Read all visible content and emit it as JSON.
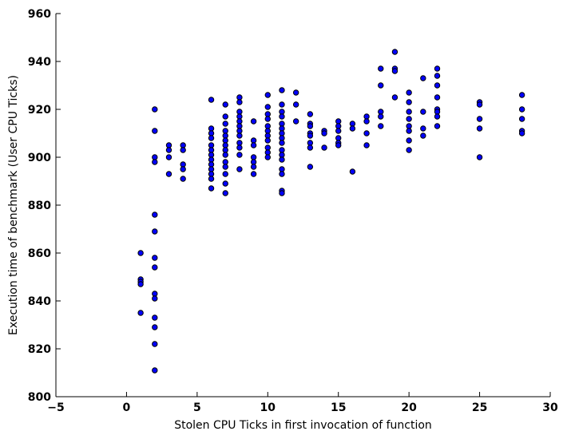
{
  "chart_data": {
    "type": "scatter",
    "title": "",
    "xlabel": "Stolen CPU Ticks in first invocation of function",
    "ylabel": "Execution time of benchmark (User CPU Ticks)",
    "xlim": [
      -5,
      30
    ],
    "ylim": [
      800,
      960
    ],
    "xticks": [
      -5,
      0,
      5,
      10,
      15,
      20,
      25,
      30
    ],
    "yticks": [
      800,
      820,
      840,
      860,
      880,
      900,
      920,
      940,
      960
    ],
    "xtick_labels": [
      "−5",
      "0",
      "5",
      "10",
      "15",
      "20",
      "25",
      "30"
    ],
    "ytick_labels": [
      "800",
      "820",
      "840",
      "860",
      "880",
      "900",
      "920",
      "940",
      "960"
    ],
    "grid": false,
    "legend": "none",
    "colors": {
      "marker_fill": "#0000ff",
      "marker_edge": "#000000"
    },
    "series": [
      {
        "points": [
          [
            1,
            860
          ],
          [
            1,
            849
          ],
          [
            1,
            848
          ],
          [
            1,
            847
          ],
          [
            1,
            835
          ],
          [
            2,
            920
          ],
          [
            2,
            911
          ],
          [
            2,
            900
          ],
          [
            2,
            898
          ],
          [
            2,
            876
          ],
          [
            2,
            869
          ],
          [
            2,
            858
          ],
          [
            2,
            854
          ],
          [
            2,
            843
          ],
          [
            2,
            841
          ],
          [
            2,
            833
          ],
          [
            2,
            829
          ],
          [
            2,
            822
          ],
          [
            2,
            811
          ],
          [
            3,
            905
          ],
          [
            3,
            903
          ],
          [
            3,
            900
          ],
          [
            3,
            893
          ],
          [
            4,
            905
          ],
          [
            4,
            903
          ],
          [
            4,
            897
          ],
          [
            4,
            895
          ],
          [
            4,
            891
          ],
          [
            6,
            924
          ],
          [
            6,
            912
          ],
          [
            6,
            910
          ],
          [
            6,
            908
          ],
          [
            6,
            905
          ],
          [
            6,
            903
          ],
          [
            6,
            901
          ],
          [
            6,
            899
          ],
          [
            6,
            897
          ],
          [
            6,
            895
          ],
          [
            6,
            893
          ],
          [
            6,
            891
          ],
          [
            6,
            887
          ],
          [
            7,
            922
          ],
          [
            7,
            917
          ],
          [
            7,
            914
          ],
          [
            7,
            911
          ],
          [
            7,
            909
          ],
          [
            7,
            907
          ],
          [
            7,
            905
          ],
          [
            7,
            903
          ],
          [
            7,
            901
          ],
          [
            7,
            898
          ],
          [
            7,
            896
          ],
          [
            7,
            893
          ],
          [
            7,
            889
          ],
          [
            7,
            885
          ],
          [
            8,
            925
          ],
          [
            8,
            923
          ],
          [
            8,
            919
          ],
          [
            8,
            917
          ],
          [
            8,
            915
          ],
          [
            8,
            913
          ],
          [
            8,
            911
          ],
          [
            8,
            909
          ],
          [
            8,
            906
          ],
          [
            8,
            904
          ],
          [
            8,
            901
          ],
          [
            8,
            895
          ],
          [
            9,
            915
          ],
          [
            9,
            907
          ],
          [
            9,
            905
          ],
          [
            9,
            900
          ],
          [
            9,
            898
          ],
          [
            9,
            896
          ],
          [
            9,
            893
          ],
          [
            10,
            926
          ],
          [
            10,
            921
          ],
          [
            10,
            918
          ],
          [
            10,
            916
          ],
          [
            10,
            913
          ],
          [
            10,
            911
          ],
          [
            10,
            909
          ],
          [
            10,
            907
          ],
          [
            10,
            904
          ],
          [
            10,
            902
          ],
          [
            10,
            900
          ],
          [
            11,
            928
          ],
          [
            11,
            922
          ],
          [
            11,
            919
          ],
          [
            11,
            917
          ],
          [
            11,
            914
          ],
          [
            11,
            912
          ],
          [
            11,
            910
          ],
          [
            11,
            908
          ],
          [
            11,
            906
          ],
          [
            11,
            903
          ],
          [
            11,
            901
          ],
          [
            11,
            899
          ],
          [
            11,
            895
          ],
          [
            11,
            893
          ],
          [
            11,
            886
          ],
          [
            11,
            885
          ],
          [
            12,
            927
          ],
          [
            12,
            922
          ],
          [
            12,
            915
          ],
          [
            13,
            918
          ],
          [
            13,
            914
          ],
          [
            13,
            913
          ],
          [
            13,
            910
          ],
          [
            13,
            909
          ],
          [
            13,
            906
          ],
          [
            13,
            904
          ],
          [
            13,
            896
          ],
          [
            14,
            911
          ],
          [
            14,
            910
          ],
          [
            14,
            904
          ],
          [
            15,
            915
          ],
          [
            15,
            913
          ],
          [
            15,
            911
          ],
          [
            15,
            908
          ],
          [
            15,
            906
          ],
          [
            15,
            905
          ],
          [
            16,
            914
          ],
          [
            16,
            912
          ],
          [
            16,
            894
          ],
          [
            17,
            917
          ],
          [
            17,
            915
          ],
          [
            17,
            910
          ],
          [
            17,
            905
          ],
          [
            18,
            937
          ],
          [
            18,
            930
          ],
          [
            18,
            919
          ],
          [
            18,
            917
          ],
          [
            18,
            913
          ],
          [
            19,
            944
          ],
          [
            19,
            937
          ],
          [
            19,
            936
          ],
          [
            19,
            925
          ],
          [
            20,
            927
          ],
          [
            20,
            923
          ],
          [
            20,
            919
          ],
          [
            20,
            916
          ],
          [
            20,
            913
          ],
          [
            20,
            911
          ],
          [
            20,
            907
          ],
          [
            20,
            903
          ],
          [
            21,
            933
          ],
          [
            21,
            919
          ],
          [
            21,
            912
          ],
          [
            21,
            909
          ],
          [
            22,
            937
          ],
          [
            22,
            934
          ],
          [
            22,
            930
          ],
          [
            22,
            925
          ],
          [
            22,
            920
          ],
          [
            22,
            919
          ],
          [
            22,
            917
          ],
          [
            22,
            913
          ],
          [
            25,
            923
          ],
          [
            25,
            922
          ],
          [
            25,
            916
          ],
          [
            25,
            912
          ],
          [
            25,
            900
          ],
          [
            28,
            926
          ],
          [
            28,
            920
          ],
          [
            28,
            916
          ],
          [
            28,
            911
          ],
          [
            28,
            910
          ]
        ]
      }
    ]
  }
}
